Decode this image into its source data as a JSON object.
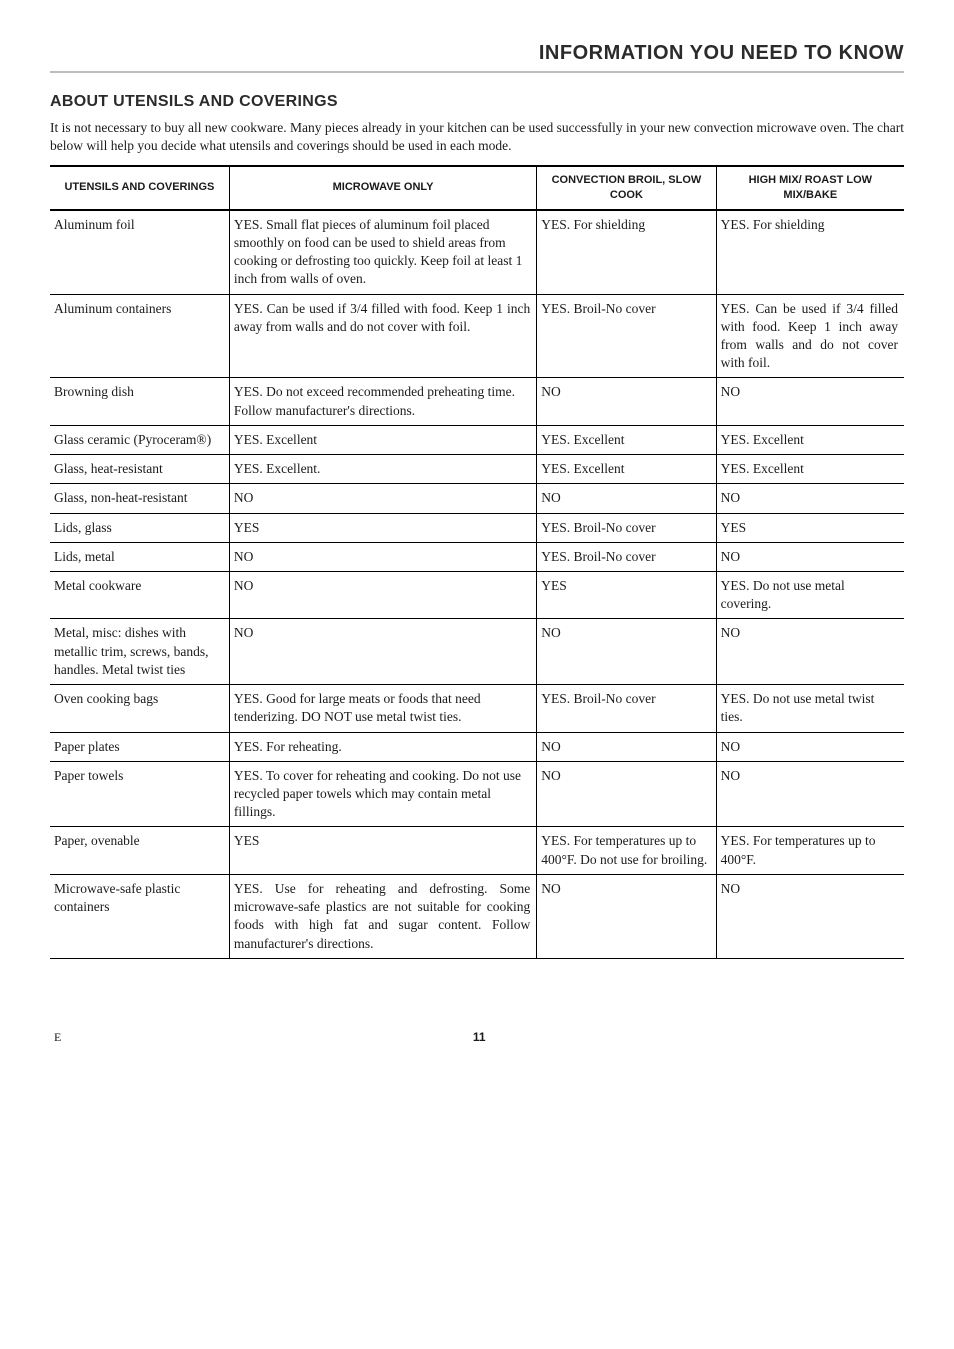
{
  "page_title": "INFORMATION YOU NEED TO KNOW",
  "section_heading": "ABOUT UTENSILS AND COVERINGS",
  "intro": "It is not necessary to buy all new cookware. Many pieces already in your kitchen can be used successfully in your new convection microwave oven. The chart below will help you decide what utensils and coverings should be used in each mode.",
  "columns": [
    "UTENSILS AND COVERINGS",
    "MICROWAVE ONLY",
    "CONVECTION BROIL, SLOW COOK",
    "HIGH MIX/ ROAST LOW MIX/BAKE"
  ],
  "rows": [
    [
      "Aluminum foil",
      "YES. Small flat pieces of aluminum foil placed smoothly on food can be used to shield areas from cooking or defrosting too quickly. Keep foil at least 1 inch from walls of oven.",
      "YES. For shielding",
      "YES. For shielding"
    ],
    [
      "Aluminum containers",
      "YES. Can be used if 3/4 filled with food. Keep 1 inch away from walls and do not cover with foil.",
      "YES. Broil-No cover",
      "YES. Can be used if 3/4 filled with food. Keep 1 inch away from walls and do not cover with foil."
    ],
    [
      "Browning dish",
      "YES. Do not exceed recommended preheating time. Follow manufacturer's directions.",
      "NO",
      "NO"
    ],
    [
      "Glass ceramic (Pyroceram®)",
      "YES. Excellent",
      "YES. Excellent",
      "YES. Excellent"
    ],
    [
      "Glass, heat-resistant",
      "YES. Excellent.",
      "YES. Excellent",
      "YES. Excellent"
    ],
    [
      "Glass, non-heat-resistant",
      "NO",
      "NO",
      "NO"
    ],
    [
      "Lids, glass",
      "YES",
      "YES. Broil-No cover",
      "YES"
    ],
    [
      "Lids, metal",
      "NO",
      "YES. Broil-No cover",
      "NO"
    ],
    [
      "Metal cookware",
      "NO",
      "YES",
      "YES. Do not use metal covering."
    ],
    [
      "Metal, misc: dishes with metallic trim, screws, bands, handles. Metal twist ties",
      "NO",
      "NO",
      "NO"
    ],
    [
      "Oven cooking bags",
      "YES. Good for large meats or foods that need tenderizing. DO NOT use metal twist ties.",
      "YES. Broil-No cover",
      "YES. Do not use metal twist ties."
    ],
    [
      "Paper plates",
      "YES. For reheating.",
      "NO",
      "NO"
    ],
    [
      "Paper towels",
      "YES. To cover for reheating and cooking. Do not use recycled paper towels which may contain metal fillings.",
      "NO",
      "NO"
    ],
    [
      "Paper, ovenable",
      "YES",
      "YES. For temperatures up to 400°F. Do not use for broiling.",
      "YES. For temperatures up to 400°F."
    ],
    [
      "Microwave-safe plastic containers",
      "YES. Use for reheating and defrosting. Some microwave-safe plastics are not suitable for cooking foods with high fat and sugar content. Follow manufacturer's directions.",
      "NO",
      "NO"
    ]
  ],
  "justify_cells": {
    "1": [
      1,
      3
    ],
    "14": [
      1
    ]
  },
  "footer_left": "E",
  "footer_page": "11"
}
